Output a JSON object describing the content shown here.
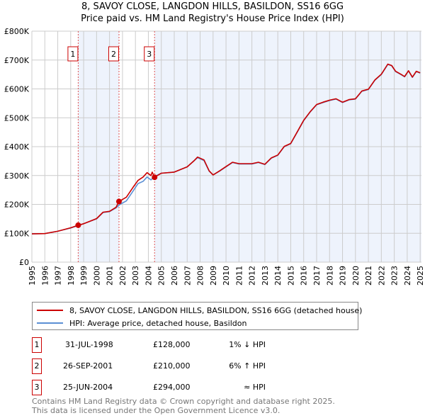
{
  "title_line1": "8, SAVOY CLOSE, LANGDON HILLS, BASILDON, SS16 6GG",
  "title_line2": "Price paid vs. HM Land Registry's House Price Index (HPI)",
  "chart_data": {
    "type": "line",
    "xlim": [
      1995,
      2025.1
    ],
    "ylim": [
      0,
      800000
    ],
    "x_ticks": [
      1995,
      1996,
      1997,
      1998,
      1999,
      2000,
      2001,
      2002,
      2003,
      2004,
      2005,
      2006,
      2007,
      2008,
      2009,
      2010,
      2011,
      2012,
      2013,
      2014,
      2015,
      2016,
      2017,
      2018,
      2019,
      2020,
      2021,
      2022,
      2023,
      2024,
      2025
    ],
    "y_ticks": [
      0,
      100000,
      200000,
      300000,
      400000,
      500000,
      600000,
      700000,
      800000
    ],
    "y_tick_labels": [
      "£0",
      "£100K",
      "£200K",
      "£300K",
      "£400K",
      "£500K",
      "£600K",
      "£700K",
      "£800K"
    ],
    "grid": true,
    "series": [
      {
        "name": "HPI: Average price, detached house, Basildon",
        "color": "#5b8fd4",
        "points": [
          [
            1995,
            98000
          ],
          [
            1996,
            99000
          ],
          [
            1997,
            107000
          ],
          [
            1998,
            118000
          ],
          [
            1998.6,
            127000
          ],
          [
            1999,
            133000
          ],
          [
            2000,
            150000
          ],
          [
            2000.5,
            172000
          ],
          [
            2001,
            175000
          ],
          [
            2001.5,
            188000
          ],
          [
            2001.8,
            200000
          ],
          [
            2002.3,
            212000
          ],
          [
            2002.8,
            245000
          ],
          [
            2003.2,
            272000
          ],
          [
            2003.6,
            280000
          ],
          [
            2003.9,
            295000
          ],
          [
            2004.2,
            285000
          ],
          [
            2004.5,
            297000
          ],
          [
            2005,
            308000
          ],
          [
            2006,
            312000
          ],
          [
            2007,
            330000
          ],
          [
            2007.5,
            350000
          ],
          [
            2007.8,
            362000
          ],
          [
            2008.3,
            352000
          ],
          [
            2008.7,
            315000
          ],
          [
            2009,
            302000
          ],
          [
            2009.5,
            315000
          ],
          [
            2010,
            330000
          ],
          [
            2010.5,
            345000
          ],
          [
            2011,
            340000
          ],
          [
            2012,
            340000
          ],
          [
            2012.5,
            345000
          ],
          [
            2013,
            338000
          ],
          [
            2013.5,
            360000
          ],
          [
            2014,
            370000
          ],
          [
            2014.5,
            400000
          ],
          [
            2015,
            410000
          ],
          [
            2015.5,
            450000
          ],
          [
            2016,
            490000
          ],
          [
            2016.5,
            520000
          ],
          [
            2017,
            545000
          ],
          [
            2017.5,
            553000
          ],
          [
            2018,
            560000
          ],
          [
            2018.5,
            565000
          ],
          [
            2019,
            553000
          ],
          [
            2019.5,
            562000
          ],
          [
            2020,
            565000
          ],
          [
            2020.5,
            592000
          ],
          [
            2021,
            598000
          ],
          [
            2021.5,
            630000
          ],
          [
            2022,
            650000
          ],
          [
            2022.5,
            685000
          ],
          [
            2022.8,
            680000
          ],
          [
            2023.1,
            660000
          ],
          [
            2023.5,
            650000
          ],
          [
            2023.8,
            642000
          ],
          [
            2024.1,
            662000
          ],
          [
            2024.4,
            640000
          ],
          [
            2024.7,
            660000
          ],
          [
            2025,
            655000
          ]
        ]
      },
      {
        "name": "8, SAVOY CLOSE, LANGDON HILLS, BASILDON, SS16 6GG (detached house)",
        "color": "#cc0000",
        "points": [
          [
            1995,
            98000
          ],
          [
            1996,
            99000
          ],
          [
            1997,
            107000
          ],
          [
            1998,
            119000
          ],
          [
            1998.6,
            128000
          ],
          [
            1999,
            133000
          ],
          [
            2000,
            151000
          ],
          [
            2000.5,
            173000
          ],
          [
            2001,
            176000
          ],
          [
            2001.5,
            190000
          ],
          [
            2001.73,
            210000
          ],
          [
            2002.3,
            225000
          ],
          [
            2002.8,
            258000
          ],
          [
            2003.2,
            283000
          ],
          [
            2003.6,
            295000
          ],
          [
            2003.9,
            310000
          ],
          [
            2004.2,
            300000
          ],
          [
            2004.3,
            312000
          ],
          [
            2004.48,
            294000
          ],
          [
            2005,
            308000
          ],
          [
            2006,
            312000
          ],
          [
            2007,
            330000
          ],
          [
            2007.5,
            350000
          ],
          [
            2007.8,
            364000
          ],
          [
            2008.3,
            354000
          ],
          [
            2008.7,
            316000
          ],
          [
            2009,
            302000
          ],
          [
            2009.5,
            316000
          ],
          [
            2010,
            331000
          ],
          [
            2010.5,
            346000
          ],
          [
            2011,
            341000
          ],
          [
            2012,
            341000
          ],
          [
            2012.5,
            346000
          ],
          [
            2013,
            339000
          ],
          [
            2013.5,
            361000
          ],
          [
            2014,
            371000
          ],
          [
            2014.5,
            401000
          ],
          [
            2015,
            411000
          ],
          [
            2015.5,
            451000
          ],
          [
            2016,
            491000
          ],
          [
            2016.5,
            521000
          ],
          [
            2017,
            546000
          ],
          [
            2017.5,
            554000
          ],
          [
            2018,
            561000
          ],
          [
            2018.5,
            566000
          ],
          [
            2019,
            554000
          ],
          [
            2019.5,
            563000
          ],
          [
            2020,
            566000
          ],
          [
            2020.5,
            593000
          ],
          [
            2021,
            599000
          ],
          [
            2021.5,
            631000
          ],
          [
            2022,
            651000
          ],
          [
            2022.5,
            686000
          ],
          [
            2022.8,
            681000
          ],
          [
            2023.1,
            661000
          ],
          [
            2023.5,
            651000
          ],
          [
            2023.8,
            643000
          ],
          [
            2024.1,
            663000
          ],
          [
            2024.4,
            641000
          ],
          [
            2024.7,
            661000
          ],
          [
            2025,
            656000
          ]
        ]
      }
    ],
    "sales": [
      {
        "label": "1",
        "x": 1998.58,
        "price": 128000
      },
      {
        "label": "2",
        "x": 2001.73,
        "price": 210000
      },
      {
        "label": "3",
        "x": 2004.48,
        "price": 294000
      }
    ],
    "legend_placement": "below"
  },
  "legend": {
    "property": "8, SAVOY CLOSE, LANGDON HILLS, BASILDON, SS16 6GG (detached house)",
    "hpi": "HPI: Average price, detached house, Basildon"
  },
  "sales_table": [
    {
      "num": "1",
      "date": "31-JUL-1998",
      "price": "£128,000",
      "hpi": "1% ↓ HPI"
    },
    {
      "num": "2",
      "date": "26-SEP-2001",
      "price": "£210,000",
      "hpi": "6% ↑ HPI"
    },
    {
      "num": "3",
      "date": "25-JUN-2004",
      "price": "£294,000",
      "hpi": "≈ HPI"
    }
  ],
  "footer_line1": "Contains HM Land Registry data © Crown copyright and database right 2025.",
  "footer_line2": "This data is licensed under the Open Government Licence v3.0."
}
